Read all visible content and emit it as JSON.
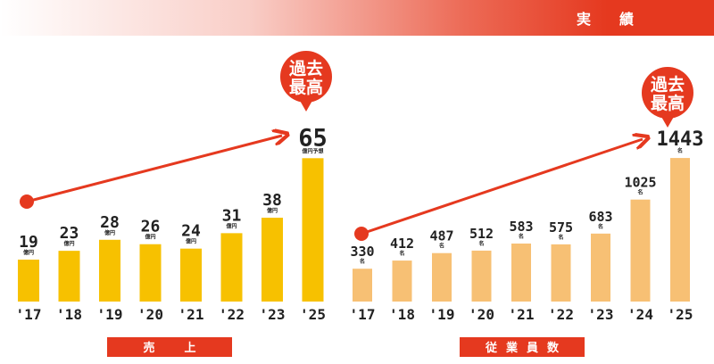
{
  "header": {
    "title": "実　績"
  },
  "badge": {
    "line1": "過去",
    "line2": "最高"
  },
  "colors": {
    "accent": "#e5391f",
    "sales_bar": "#f7c100",
    "employee_bar": "#f7c074",
    "header_band": "#e5391f"
  },
  "chart_data": [
    {
      "type": "bar",
      "title": "売　上",
      "categories": [
        "'17",
        "'18",
        "'19",
        "'20",
        "'21",
        "'22",
        "'23",
        "'25"
      ],
      "values": [
        19,
        23,
        28,
        26,
        24,
        31,
        38,
        65
      ],
      "value_units": [
        "億円",
        "億円",
        "億円",
        "億円",
        "億円",
        "億円",
        "億円",
        "億円予想"
      ],
      "highlight_index": 7,
      "annotation": "過去最高",
      "trend_arrow": true,
      "grid": false,
      "ylim": [
        0,
        72
      ]
    },
    {
      "type": "bar",
      "title": "従業員数",
      "categories": [
        "'17",
        "'18",
        "'19",
        "'20",
        "'21",
        "'22",
        "'23",
        "'24",
        "'25"
      ],
      "values": [
        330,
        412,
        487,
        512,
        583,
        575,
        683,
        1025,
        1443
      ],
      "value_units": [
        "名",
        "名",
        "名",
        "名",
        "名",
        "名",
        "名",
        "名",
        "名"
      ],
      "highlight_index": 8,
      "annotation": "過去最高",
      "trend_arrow": true,
      "grid": false,
      "ylim": [
        0,
        1650
      ]
    }
  ]
}
